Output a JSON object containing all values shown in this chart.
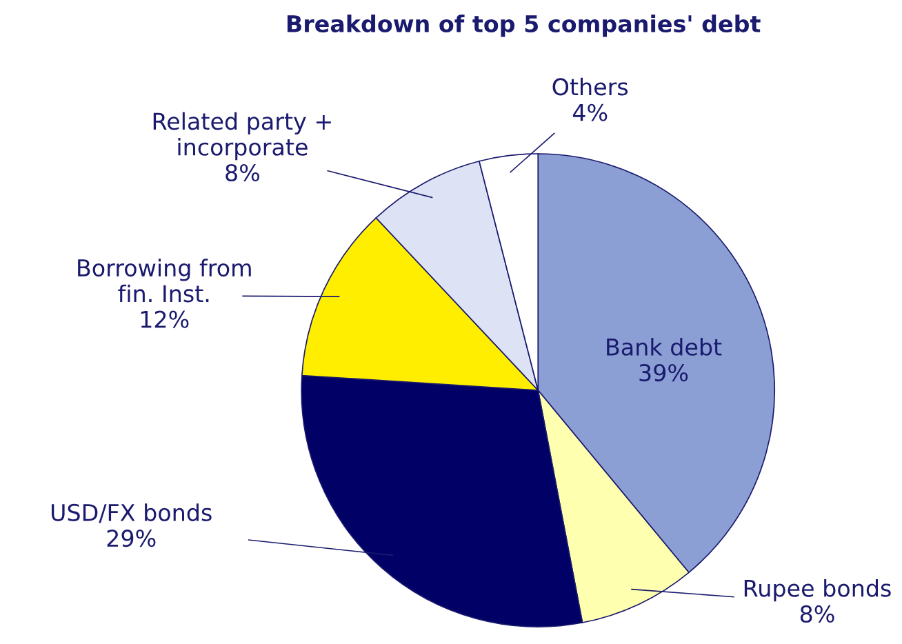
{
  "chart_data": {
    "type": "pie",
    "title": "Breakdown of top 5 companies' debt",
    "categories": [
      "Bank debt",
      "Rupee bonds",
      "USD/FX bonds",
      "Borrowing from\nfin. Inst.",
      "Related party +\nincorporate",
      "Others"
    ],
    "values": [
      39,
      8,
      29,
      12,
      8,
      4
    ],
    "colors": [
      "#8b9fd4",
      "#ffffb0",
      "#000066",
      "#ffee00",
      "#dde3f5",
      "#ffffff"
    ],
    "value_labels": [
      "39%",
      "8%",
      "29%",
      "12%",
      "8%",
      "4%"
    ]
  }
}
